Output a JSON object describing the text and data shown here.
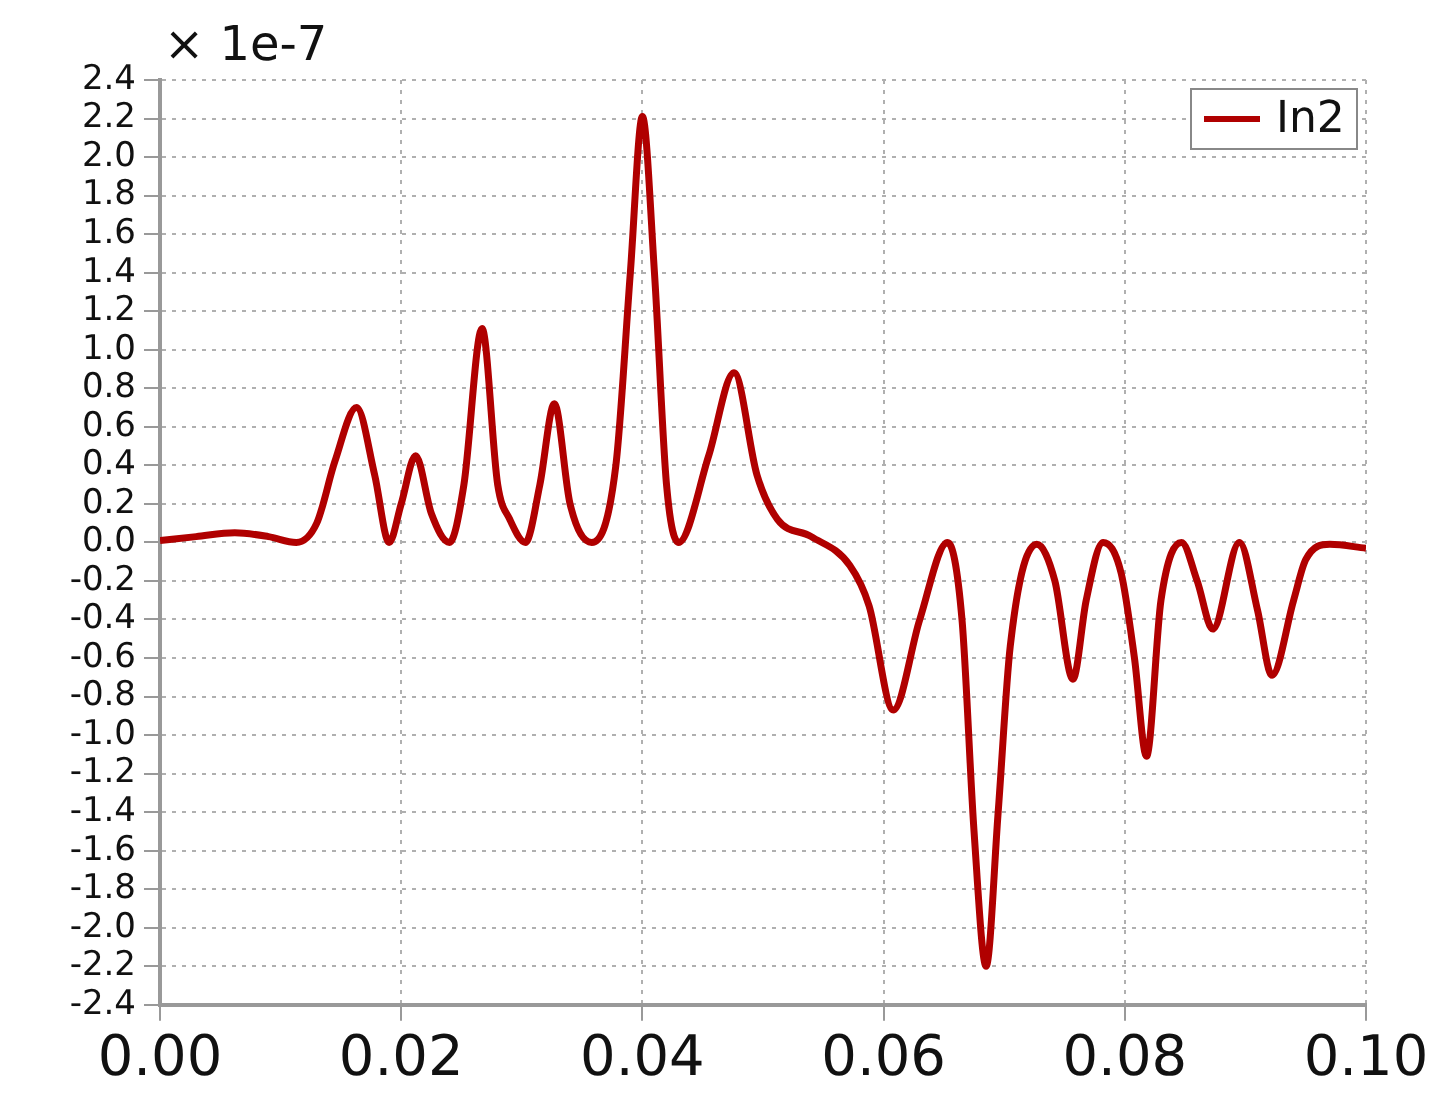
{
  "chart_data": {
    "type": "line",
    "annotations": [
      "× 1e-7"
    ],
    "x": [
      0,
      0.003,
      0.0062,
      0.009,
      0.0113,
      0.013,
      0.0145,
      0.0163,
      0.0178,
      0.019,
      0.02,
      0.0212,
      0.0225,
      0.024,
      0.0252,
      0.0267,
      0.028,
      0.029,
      0.0303,
      0.0315,
      0.0327,
      0.034,
      0.0358,
      0.0378,
      0.039,
      0.04,
      0.041,
      0.042,
      0.043,
      0.0455,
      0.0476,
      0.0495,
      0.0512,
      0.054,
      0.0572,
      0.0588,
      0.0608,
      0.063,
      0.0653,
      0.0665,
      0.0675,
      0.0685,
      0.0695,
      0.0705,
      0.0727,
      0.0742,
      0.0757,
      0.0768,
      0.0782,
      0.0797,
      0.0808,
      0.0818,
      0.083,
      0.0847,
      0.086,
      0.0873,
      0.0895,
      0.091,
      0.0922,
      0.094,
      0.095,
      0.097,
      0.1
    ],
    "series": [
      {
        "name": "In2",
        "color": "#b00000",
        "values": [
          0.01,
          0.03,
          0.05,
          0.03,
          0.0,
          0.1,
          0.42,
          0.7,
          0.35,
          0.0,
          0.2,
          0.45,
          0.15,
          0.0,
          0.3,
          1.11,
          0.3,
          0.12,
          0.0,
          0.3,
          0.72,
          0.2,
          0.0,
          0.4,
          1.4,
          2.21,
          1.4,
          0.3,
          0.0,
          0.45,
          0.88,
          0.35,
          0.12,
          0.03,
          -0.12,
          -0.33,
          -0.87,
          -0.4,
          0.0,
          -0.4,
          -1.5,
          -2.2,
          -1.4,
          -0.54,
          -0.01,
          -0.2,
          -0.71,
          -0.3,
          0.0,
          -0.16,
          -0.6,
          -1.11,
          -0.3,
          0.0,
          -0.2,
          -0.45,
          0.0,
          -0.35,
          -0.69,
          -0.3,
          -0.09,
          -0.01,
          -0.03
        ]
      }
    ],
    "xlim": [
      0,
      0.1
    ],
    "xticks": [
      {
        "value": 0,
        "label": "0.00"
      },
      {
        "value": 0.02,
        "label": "0.02"
      },
      {
        "value": 0.04,
        "label": "0.04"
      },
      {
        "value": 0.06,
        "label": "0.06"
      },
      {
        "value": 0.08,
        "label": "0.08"
      },
      {
        "value": 0.1,
        "label": "0.10"
      }
    ],
    "ylim": [
      -2.4,
      2.4
    ],
    "yticks": [
      -2.4,
      -2.2,
      {
        "value": -2.0,
        "label": "-2.0"
      },
      -1.8,
      -1.6,
      -1.4,
      -1.2,
      {
        "value": -1.0,
        "label": "-1.0"
      },
      -0.8,
      -0.6,
      -0.4,
      -0.2,
      {
        "value": 0,
        "label": "0.0"
      },
      0.2,
      0.4,
      0.6,
      0.8,
      {
        "value": 1.0,
        "label": "1.0"
      },
      1.2,
      1.4,
      1.6,
      1.8,
      {
        "value": 2.0,
        "label": "2.0"
      },
      2.2,
      2.4
    ],
    "grid": true,
    "legend": "top right",
    "marker": "none",
    "line_style": "solid"
  }
}
